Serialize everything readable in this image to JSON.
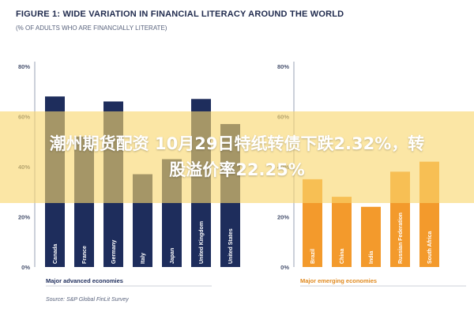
{
  "figure": {
    "title": "FIGURE 1: WIDE VARIATION IN FINANCIAL LITERACY AROUND THE WORLD",
    "subtitle": "(% OF ADULTS WHO ARE FINANCIALLY LITERATE)",
    "source": "Source: S&P Global FinLit Survey"
  },
  "banner": {
    "line1": "潮州期货配资 10月29日特纸转债下跌2.32%，转",
    "line2": "股溢价率22.25%"
  },
  "colors": {
    "advanced": "#1e2d5c",
    "emerging": "#f39a2c",
    "axis": "#9aa1b5",
    "tick_text": "#4a5470",
    "banner_bg": "#f8d66e"
  },
  "chart_data": [
    {
      "type": "bar",
      "group_label": "Major advanced economies",
      "categories": [
        "Canada",
        "France",
        "Germany",
        "Italy",
        "Japan",
        "United Kingdom",
        "United States"
      ],
      "values": [
        68,
        52,
        66,
        37,
        43,
        67,
        57
      ],
      "y_ticks": [
        "0%",
        "20%",
        "40%",
        "60%",
        "80%"
      ],
      "ylim": [
        0,
        80
      ],
      "color": "#1e2d5c"
    },
    {
      "type": "bar",
      "group_label": "Major emerging economies",
      "categories": [
        "Brazil",
        "China",
        "India",
        "Russian Federation",
        "South Africa"
      ],
      "values": [
        35,
        28,
        24,
        38,
        42
      ],
      "y_ticks": [
        "0%",
        "20%",
        "40%",
        "60%",
        "80%"
      ],
      "ylim": [
        0,
        80
      ],
      "color": "#f39a2c"
    }
  ]
}
